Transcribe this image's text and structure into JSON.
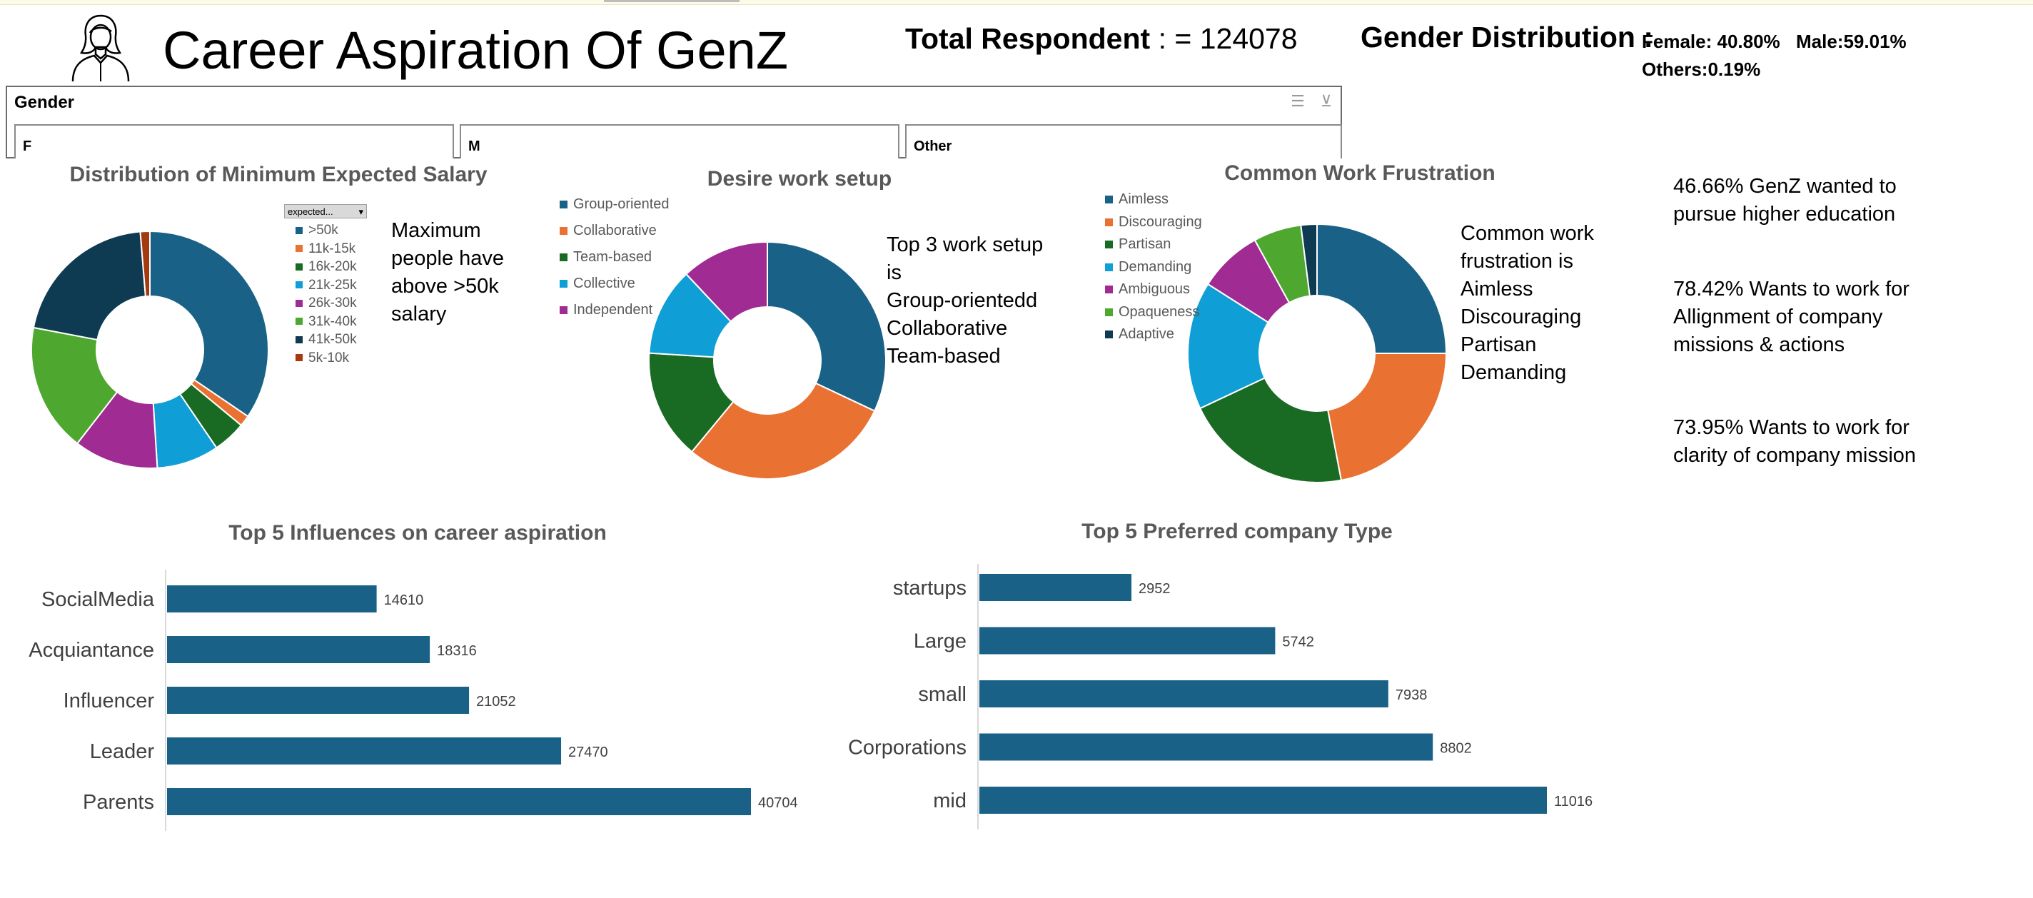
{
  "header": {
    "title": "Career Aspiration Of GenZ",
    "total_label": "Total Respondent",
    "total_value": ": = 124078",
    "gender_dist_label": "Gender Distribution :",
    "female": "Female: 40.80%",
    "male": "Male:59.01%",
    "others": "Others:0.19%"
  },
  "slicer": {
    "title": "Gender",
    "options": [
      "F",
      "M",
      "Other"
    ]
  },
  "notes": {
    "salary": "Maximum people have above >50k salary",
    "setup_lines": [
      "Top 3 work setup is",
      "Group-orientedd",
      "Collaborative",
      "Team-based"
    ],
    "frustration_lines": [
      "Common work",
      "frustration is",
      "Aimless",
      "Discouraging",
      "Partisan",
      "Demanding"
    ],
    "stat1": "46.66% GenZ wanted to pursue higher education",
    "stat2": "78.42% Wants to work for Allignment of company missions & actions",
    "stat3": "73.95% Wants to work for clarity of company mission"
  },
  "salary_filter_label": "expected...",
  "colors": {
    "blue": "#1a6188",
    "orange": "#e97132",
    "green": "#196b24",
    "cyan": "#0f9ed5",
    "purple": "#a02b93",
    "lightgreen": "#4ea72e",
    "navy": "#0e3a52",
    "brown": "#a33a10"
  },
  "chart_data": [
    {
      "type": "pie",
      "title": "Distribution of Minimum Expected Salary",
      "categories": [
        ">50k",
        "11k-15k",
        "16k-20k",
        "21k-25k",
        "26k-30k",
        "31k-40k",
        "41k-50k",
        "5k-10k"
      ],
      "values": [
        34.5,
        1.5,
        4.5,
        8.5,
        11.5,
        17.5,
        20.7,
        1.3
      ],
      "colors": [
        "#1a6188",
        "#e97132",
        "#196b24",
        "#0f9ed5",
        "#a02b93",
        "#4ea72e",
        "#0e3a52",
        "#a33a10"
      ],
      "legend": "right"
    },
    {
      "type": "pie",
      "title": "Desire work setup",
      "categories": [
        "Group-oriented",
        "Collaborative",
        "Team-based",
        "Collective",
        "Independent"
      ],
      "values": [
        32,
        29,
        15,
        12,
        12
      ],
      "colors": [
        "#1a6188",
        "#e97132",
        "#196b24",
        "#0f9ed5",
        "#a02b93"
      ],
      "legend": "left"
    },
    {
      "type": "pie",
      "title": "Common Work Frustration",
      "categories": [
        "Aimless",
        "Discouraging",
        "Partisan",
        "Demanding",
        "Ambiguous",
        "Opaqueness",
        "Adaptive"
      ],
      "values": [
        25,
        22,
        21,
        16,
        8,
        6,
        2
      ],
      "colors": [
        "#1a6188",
        "#e97132",
        "#196b24",
        "#0f9ed5",
        "#a02b93",
        "#4ea72e",
        "#0e3a52"
      ],
      "legend": "left"
    },
    {
      "type": "bar",
      "orientation": "horizontal",
      "title": "Top 5 Influences on career aspiration",
      "categories": [
        "SocialMedia",
        "Acquiantance",
        "Influencer",
        "Leader",
        "Parents"
      ],
      "values": [
        14610,
        18316,
        21052,
        27470,
        40704
      ],
      "color": "#1a6188",
      "data_labels": true
    },
    {
      "type": "bar",
      "orientation": "horizontal",
      "title": "Top 5 Preferred company Type",
      "categories": [
        "startups",
        "Large",
        "small",
        "Corporations",
        "mid"
      ],
      "values": [
        2952,
        5742,
        7938,
        8802,
        11016
      ],
      "color": "#1a6188",
      "data_labels": true
    }
  ]
}
